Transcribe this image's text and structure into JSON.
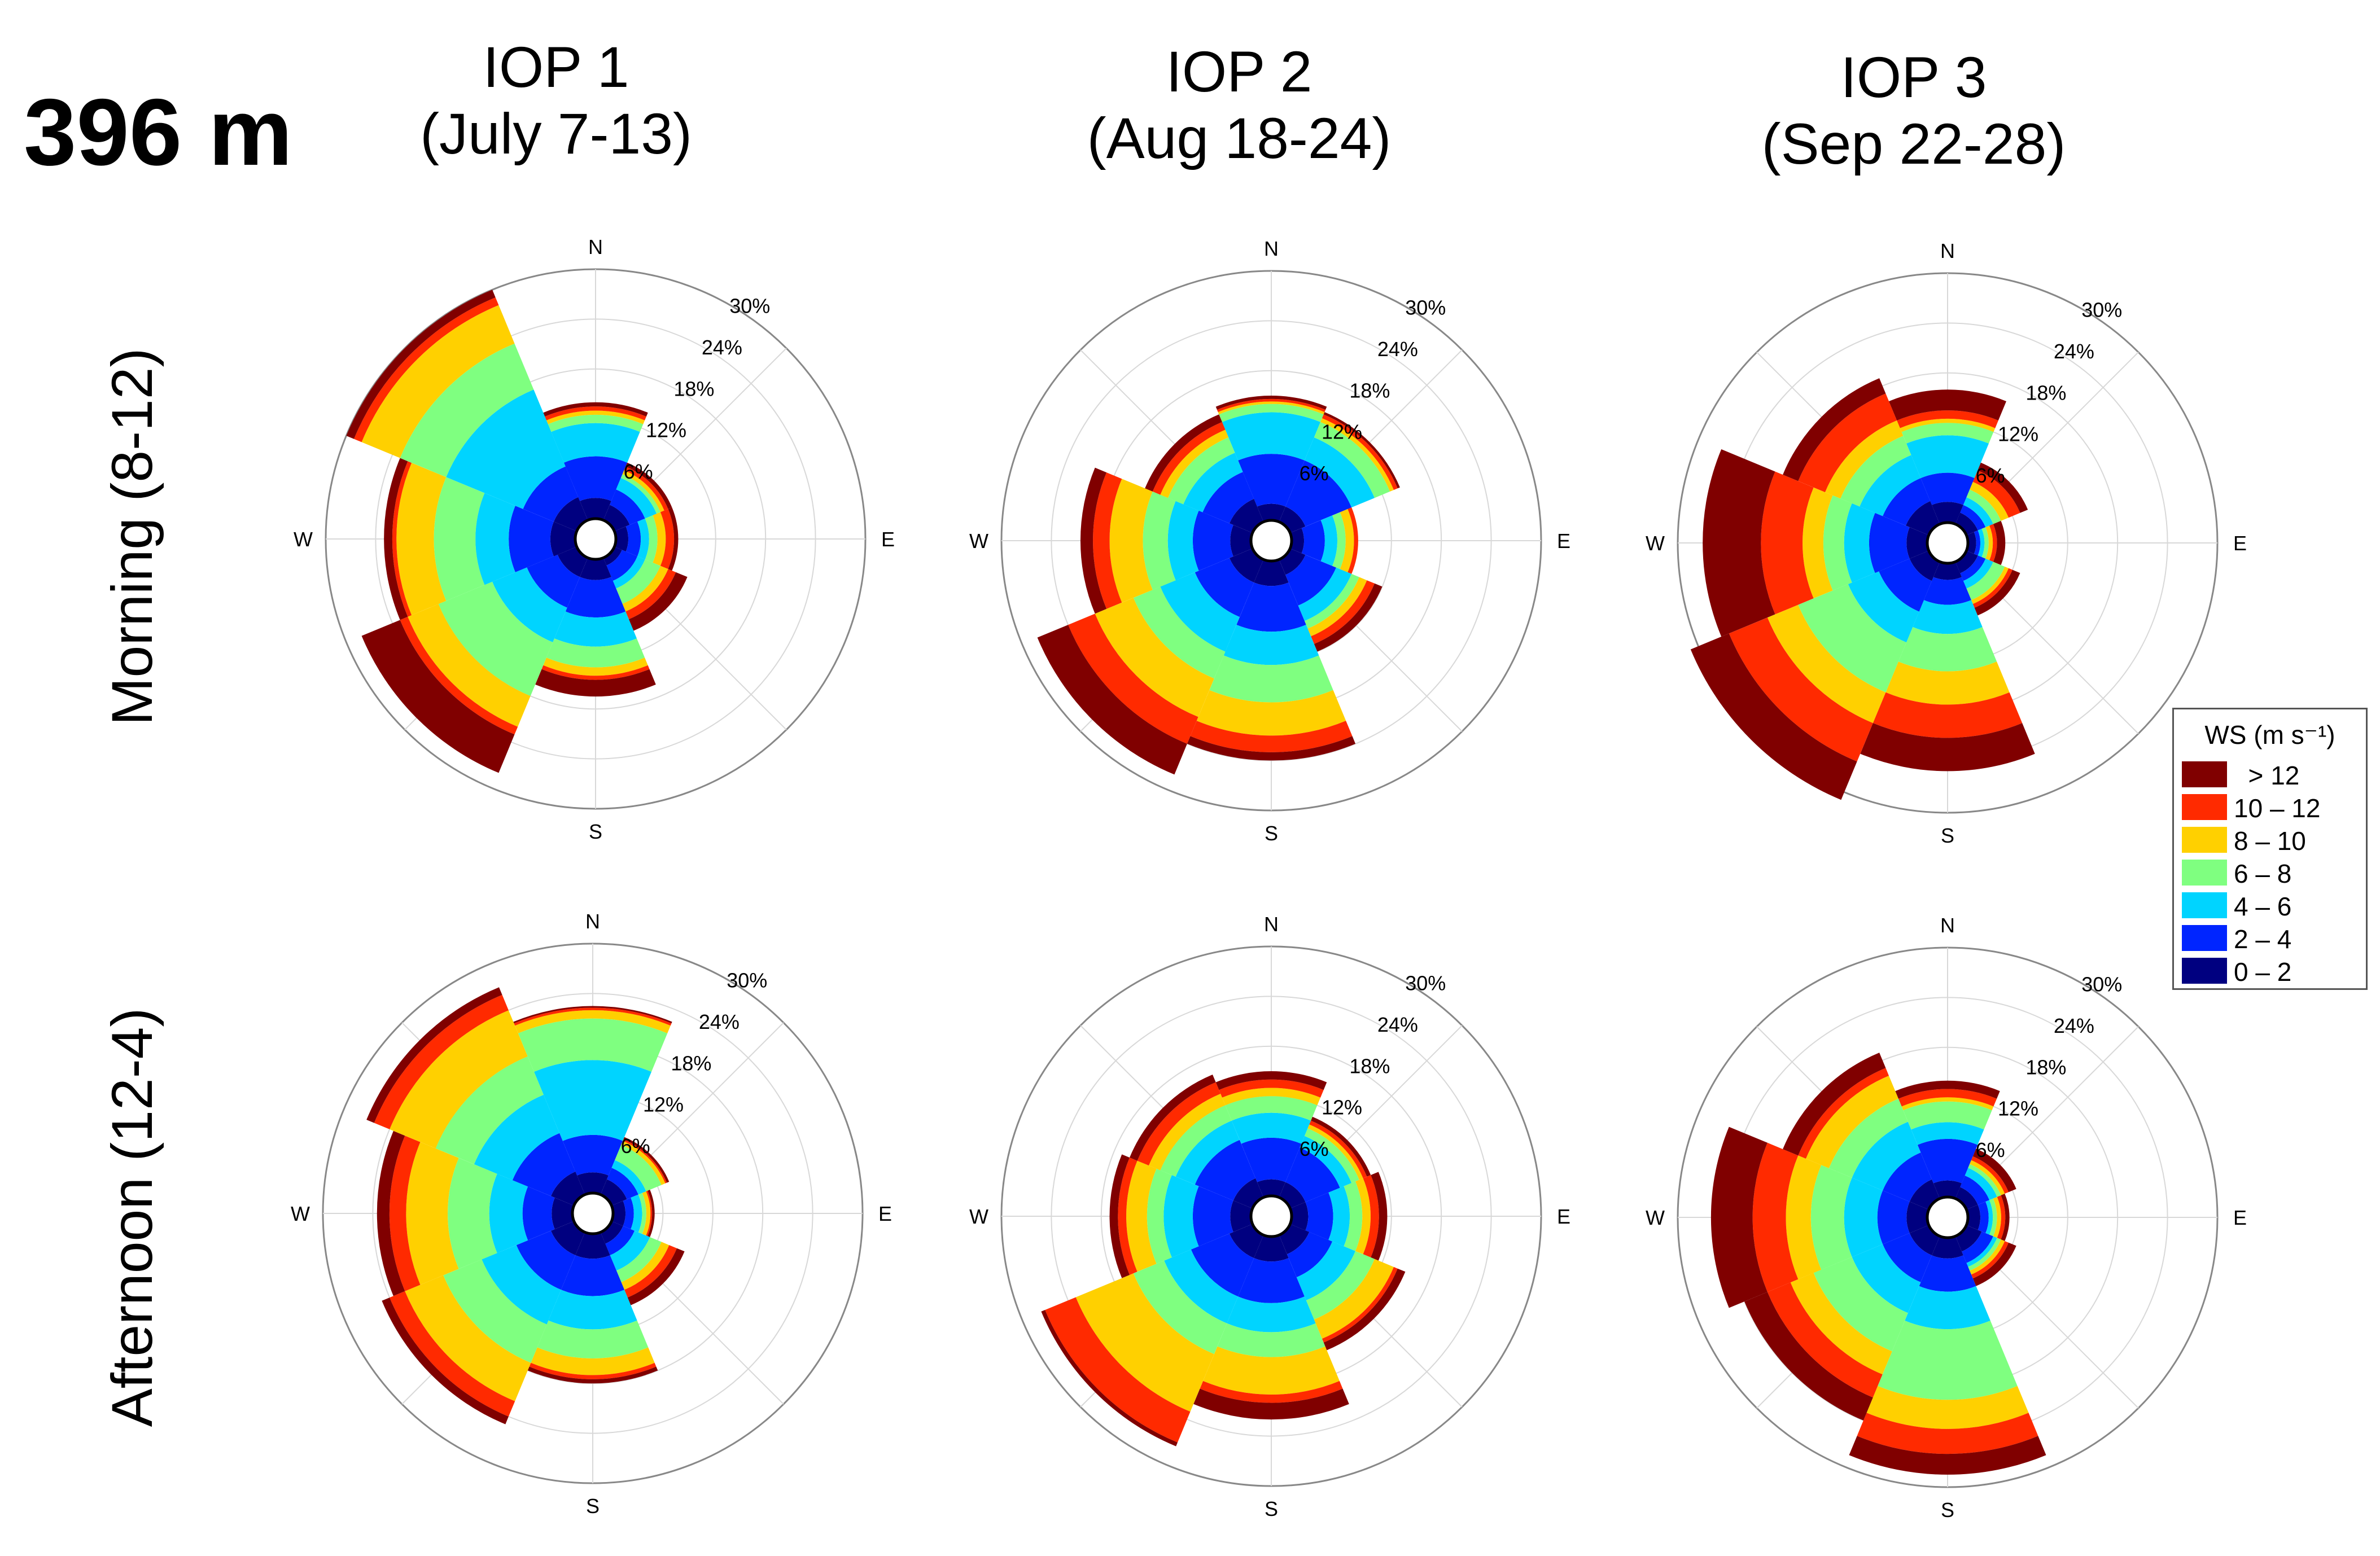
{
  "figure": {
    "height_label": "396 m",
    "columns": [
      {
        "title": "IOP 1",
        "period": "(July 7-13)"
      },
      {
        "title": "IOP 2",
        "period": "(Aug 18-24)"
      },
      {
        "title": "IOP 3",
        "period": "(Sep 22-28)"
      }
    ],
    "rows": [
      {
        "label": "Morning (8-12)"
      },
      {
        "label": "Afternoon (12-4)"
      }
    ]
  },
  "legend": {
    "title": "WS (m s⁻¹)",
    "items": [
      {
        "label": "  > 12",
        "color": "#800000"
      },
      {
        "label": "10 – 12",
        "color": "#ff2a00"
      },
      {
        "label": "8 – 10",
        "color": "#ffd000"
      },
      {
        "label": "6 – 8",
        "color": "#7fff80"
      },
      {
        "label": "4 – 6",
        "color": "#00d4ff"
      },
      {
        "label": "2 – 4",
        "color": "#0025ff"
      },
      {
        "label": "0 – 2",
        "color": "#000080"
      }
    ]
  },
  "chart_data": [
    {
      "type": "windrose",
      "panel": "IOP 1 Morning (8-12)",
      "directions": [
        "N",
        "NE",
        "E",
        "SE",
        "S",
        "SW",
        "W",
        "NW"
      ],
      "compass_labels": [
        "N",
        "E",
        "S",
        "W"
      ],
      "radial_ticks": [
        "6%",
        "12%",
        "18%",
        "24%",
        "30%"
      ],
      "rmax": 30,
      "bins": [
        "0 – 2",
        "2 – 4",
        "4 – 6",
        "6 – 8",
        "8 – 10",
        "10 – 12",
        "> 12"
      ],
      "cumulative_percent": [
        [
          2.5,
          7.5,
          11.5,
          12.5,
          13,
          13.5,
          14
        ],
        [
          2,
          4,
          5.5,
          6,
          6.5,
          7,
          7.5
        ],
        [
          1.5,
          3,
          4,
          5,
          6,
          7,
          7.5
        ],
        [
          1,
          3,
          4,
          6,
          7,
          8,
          9.5
        ],
        [
          2.5,
          7,
          10.5,
          13,
          14,
          14.5,
          16.5
        ],
        [
          2.5,
          6.5,
          11,
          18,
          22,
          23,
          28
        ],
        [
          3,
          8,
          12,
          17,
          21.5,
          22,
          23
        ],
        [
          3,
          7,
          17,
          23,
          28,
          29,
          30
        ]
      ]
    },
    {
      "type": "windrose",
      "panel": "IOP 2 Morning (8-12)",
      "directions": [
        "N",
        "NE",
        "E",
        "SE",
        "S",
        "SW",
        "W",
        "NW"
      ],
      "compass_labels": [
        "N",
        "E",
        "S",
        "W"
      ],
      "radial_ticks": [
        "6%",
        "12%",
        "18%",
        "24%",
        "30%"
      ],
      "rmax": 30,
      "bins": [
        "0 – 2",
        "2 – 4",
        "4 – 6",
        "6 – 8",
        "8 – 10",
        "10 – 12",
        "> 12"
      ],
      "cumulative_percent": [
        [
          2,
          8,
          13,
          14,
          14.3,
          14.6,
          15
        ],
        [
          2,
          8,
          11,
          13,
          13.5,
          14,
          14.3
        ],
        [
          1.5,
          4,
          5.5,
          6.5,
          7.5,
          8,
          8
        ],
        [
          2,
          6,
          8,
          9,
          10,
          11,
          12
        ],
        [
          3,
          8.5,
          12.5,
          17,
          21,
          23,
          24
        ],
        [
          3,
          7.5,
          12,
          15.5,
          20.5,
          24,
          28
        ],
        [
          2.5,
          7,
          10,
          13,
          17,
          19,
          20.5
        ],
        [
          3,
          6.5,
          9,
          11,
          12,
          13,
          14
        ]
      ]
    },
    {
      "type": "windrose",
      "panel": "IOP 3 Morning (8-12)",
      "directions": [
        "N",
        "NE",
        "E",
        "SE",
        "S",
        "SW",
        "W",
        "NW"
      ],
      "compass_labels": [
        "N",
        "E",
        "S",
        "W"
      ],
      "radial_ticks": [
        "6%",
        "12%",
        "18%",
        "24%",
        "30%"
      ],
      "rmax": 30,
      "bins": [
        "0 – 2",
        "2 – 4",
        "4 – 6",
        "6 – 8",
        "8 – 10",
        "10 – 12",
        "> 12"
      ],
      "cumulative_percent": [
        [
          2.5,
          6,
          10.5,
          12,
          12.5,
          13.5,
          16
        ],
        [
          1.5,
          2.5,
          3.5,
          4.5,
          5.5,
          7,
          8
        ],
        [
          1,
          1.5,
          2,
          2.5,
          3,
          3.5,
          4.5
        ],
        [
          1.5,
          2.5,
          3.5,
          5,
          5.5,
          6,
          7
        ],
        [
          2,
          5,
          8.5,
          13,
          17,
          21,
          25
        ],
        [
          2.5,
          6.5,
          10.5,
          17,
          21,
          26,
          31
        ],
        [
          2.5,
          7,
          10,
          12.5,
          15,
          20,
          27
        ],
        [
          3,
          6,
          9,
          11.5,
          13.5,
          17,
          19
        ]
      ]
    },
    {
      "type": "windrose",
      "panel": "IOP 1 Afternoon (12-4)",
      "directions": [
        "N",
        "NE",
        "E",
        "SE",
        "S",
        "SW",
        "W",
        "NW"
      ],
      "compass_labels": [
        "N",
        "E",
        "S",
        "W"
      ],
      "radial_ticks": [
        "6%",
        "12%",
        "18%",
        "24%",
        "30%"
      ],
      "rmax": 30,
      "bins": [
        "0 – 2",
        "2 – 4",
        "4 – 6",
        "6 – 8",
        "8 – 10",
        "10 – 12",
        "> 12"
      ],
      "cumulative_percent": [
        [
          2.5,
          7,
          16,
          21,
          22,
          22.3,
          22.5
        ],
        [
          2,
          3.5,
          4.5,
          6.5,
          7,
          7.2,
          7.5
        ],
        [
          1.5,
          2.5,
          3.5,
          4,
          4.5,
          4.7,
          5
        ],
        [
          1.5,
          3,
          5,
          6.5,
          7.5,
          8.5,
          9.5
        ],
        [
          3,
          7.5,
          11.5,
          15,
          17,
          17.5,
          18
        ],
        [
          3,
          7.5,
          12,
          17,
          22,
          24,
          25
        ],
        [
          2.5,
          6,
          10,
          15,
          20,
          22,
          23.5
        ],
        [
          3,
          8,
          13,
          18,
          24,
          26,
          27
        ]
      ]
    },
    {
      "type": "windrose",
      "panel": "IOP 2 Afternoon (12-4)",
      "directions": [
        "N",
        "NE",
        "E",
        "SE",
        "S",
        "SW",
        "W",
        "NW"
      ],
      "compass_labels": [
        "N",
        "E",
        "S",
        "W"
      ],
      "radial_ticks": [
        "6%",
        "12%",
        "18%",
        "24%",
        "30%"
      ],
      "rmax": 30,
      "bins": [
        "0 – 2",
        "2 – 4",
        "4 – 6",
        "6 – 8",
        "8 – 10",
        "10 – 12",
        "> 12"
      ],
      "cumulative_percent": [
        [
          2,
          7,
          10,
          12,
          13,
          14,
          15
        ],
        [
          2,
          6.5,
          8,
          9,
          9.5,
          10,
          10.5
        ],
        [
          2,
          5,
          7,
          8.5,
          9.5,
          10.5,
          11.5
        ],
        [
          2.5,
          5.5,
          8.5,
          11,
          13.5,
          14,
          15
        ],
        [
          3,
          8,
          11.5,
          14.5,
          19,
          20,
          22
        ],
        [
          3,
          8,
          11.5,
          15.5,
          23,
          27,
          27.5
        ],
        [
          2.5,
          7,
          10.5,
          12.5,
          15,
          16,
          17
        ],
        [
          2.5,
          7.5,
          10,
          12,
          13.5,
          15,
          16
        ]
      ]
    },
    {
      "type": "windrose",
      "panel": "IOP 3 Afternoon (12-4)",
      "directions": [
        "N",
        "NE",
        "E",
        "SE",
        "S",
        "SW",
        "W",
        "NW"
      ],
      "compass_labels": [
        "N",
        "E",
        "S",
        "W"
      ],
      "radial_ticks": [
        "6%",
        "12%",
        "18%",
        "24%",
        "30%"
      ],
      "rmax": 30,
      "bins": [
        "0 – 2",
        "2 – 4",
        "4 – 6",
        "6 – 8",
        "8 – 10",
        "10 – 12",
        "> 12"
      ],
      "cumulative_percent": [
        [
          2,
          7,
          9,
          11.5,
          12,
          13,
          14
        ],
        [
          1.5,
          3,
          4,
          4.5,
          5,
          5.5,
          6.5
        ],
        [
          1.5,
          2.5,
          3,
          3.5,
          4,
          4.5,
          5
        ],
        [
          2,
          3.5,
          4,
          4.5,
          5,
          5.5,
          6.5
        ],
        [
          2.5,
          6.5,
          11,
          19.5,
          23,
          26,
          28.5
        ],
        [
          2.5,
          6,
          10,
          15,
          18,
          21,
          24
        ],
        [
          2.5,
          6,
          10,
          14,
          17,
          21,
          26
        ],
        [
          2.5,
          6,
          10,
          13,
          16,
          17,
          19
        ]
      ]
    }
  ]
}
